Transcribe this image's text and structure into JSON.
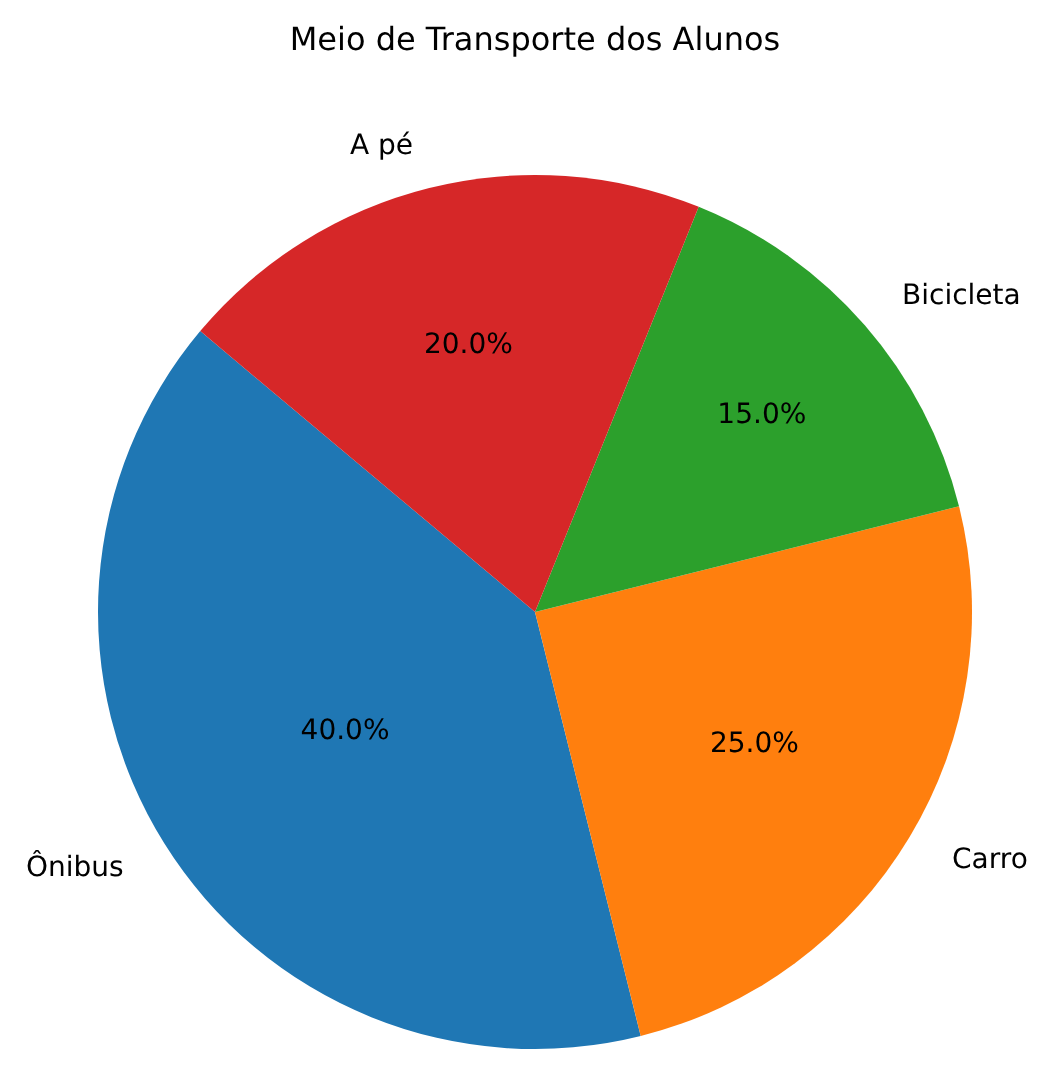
{
  "chart_data": {
    "type": "pie",
    "title": "Meio de Transporte dos Alunos",
    "categories": [
      "Ônibus",
      "Carro",
      "Bicicleta",
      "A pé"
    ],
    "values": [
      40,
      25,
      15,
      20
    ],
    "colors": [
      "#1f77b4",
      "#ff7f0e",
      "#2ca02c",
      "#d62728"
    ],
    "value_labels": [
      "40.0%",
      "25.0%",
      "15.0%",
      "20.0%"
    ],
    "legend": false
  }
}
